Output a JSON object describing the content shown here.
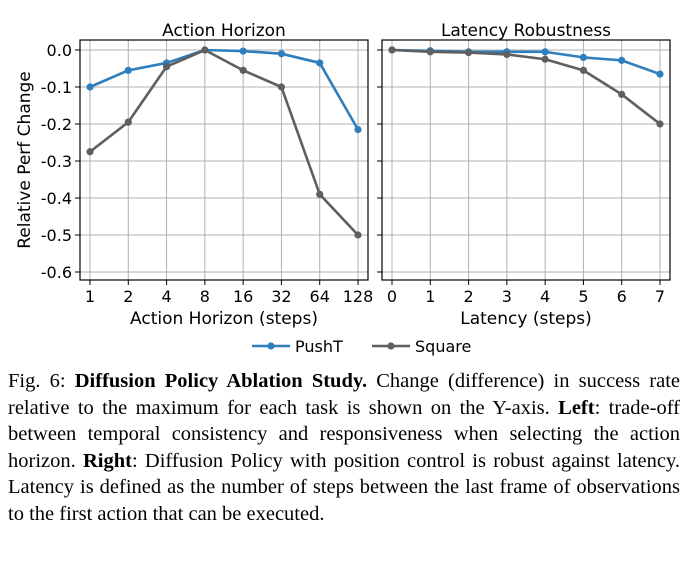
{
  "chart_data": [
    {
      "type": "line",
      "title": "Action Horizon",
      "xlabel": "Action Horizon (steps)",
      "ylabel": "Relative Perf Change",
      "categories": [
        "1",
        "2",
        "4",
        "8",
        "16",
        "32",
        "64",
        "128"
      ],
      "series": [
        {
          "name": "PushT",
          "values": [
            -0.1,
            -0.055,
            -0.035,
            0.0,
            -0.003,
            -0.01,
            -0.035,
            -0.215
          ]
        },
        {
          "name": "Square",
          "values": [
            -0.275,
            -0.195,
            -0.045,
            0.0,
            -0.055,
            -0.1,
            -0.39,
            -0.5
          ]
        }
      ],
      "ylim": [
        -0.6,
        0.0
      ],
      "yticks": [
        "0.0",
        "-0.1",
        "-0.2",
        "-0.3",
        "-0.4",
        "-0.5",
        "-0.6"
      ],
      "grid": true
    },
    {
      "type": "line",
      "title": "Latency Robustness",
      "xlabel": "Latency (steps)",
      "ylabel": "",
      "categories": [
        "0",
        "1",
        "2",
        "3",
        "4",
        "5",
        "6",
        "7"
      ],
      "series": [
        {
          "name": "PushT",
          "values": [
            0.0,
            -0.002,
            -0.005,
            -0.005,
            -0.005,
            -0.02,
            -0.028,
            -0.065
          ]
        },
        {
          "name": "Square",
          "values": [
            0.0,
            -0.005,
            -0.007,
            -0.012,
            -0.025,
            -0.055,
            -0.12,
            -0.2
          ]
        }
      ],
      "ylim": [
        -0.6,
        0.0
      ],
      "grid": true
    }
  ],
  "legend": {
    "placement": "bottom-center",
    "items": [
      "PushT",
      "Square"
    ]
  },
  "colors": {
    "PushT": "#2e7fbd",
    "Square": "#5f5f5f",
    "grid": "#b0b0b0"
  },
  "caption": {
    "label": "Fig. 6:",
    "title": "Diffusion Policy Ablation Study.",
    "text1": " Change (difference) in success rate relative to the maximum for each task is shown on the Y-axis. ",
    "left_label": "Left",
    "text2": ": trade-off between temporal consistency and responsiveness when selecting the action horizon. ",
    "right_label": "Right",
    "text3": ": Diffusion Policy with position control is robust against latency. Latency is defined as the number of steps between the last frame of observations to the first action that can be executed."
  }
}
